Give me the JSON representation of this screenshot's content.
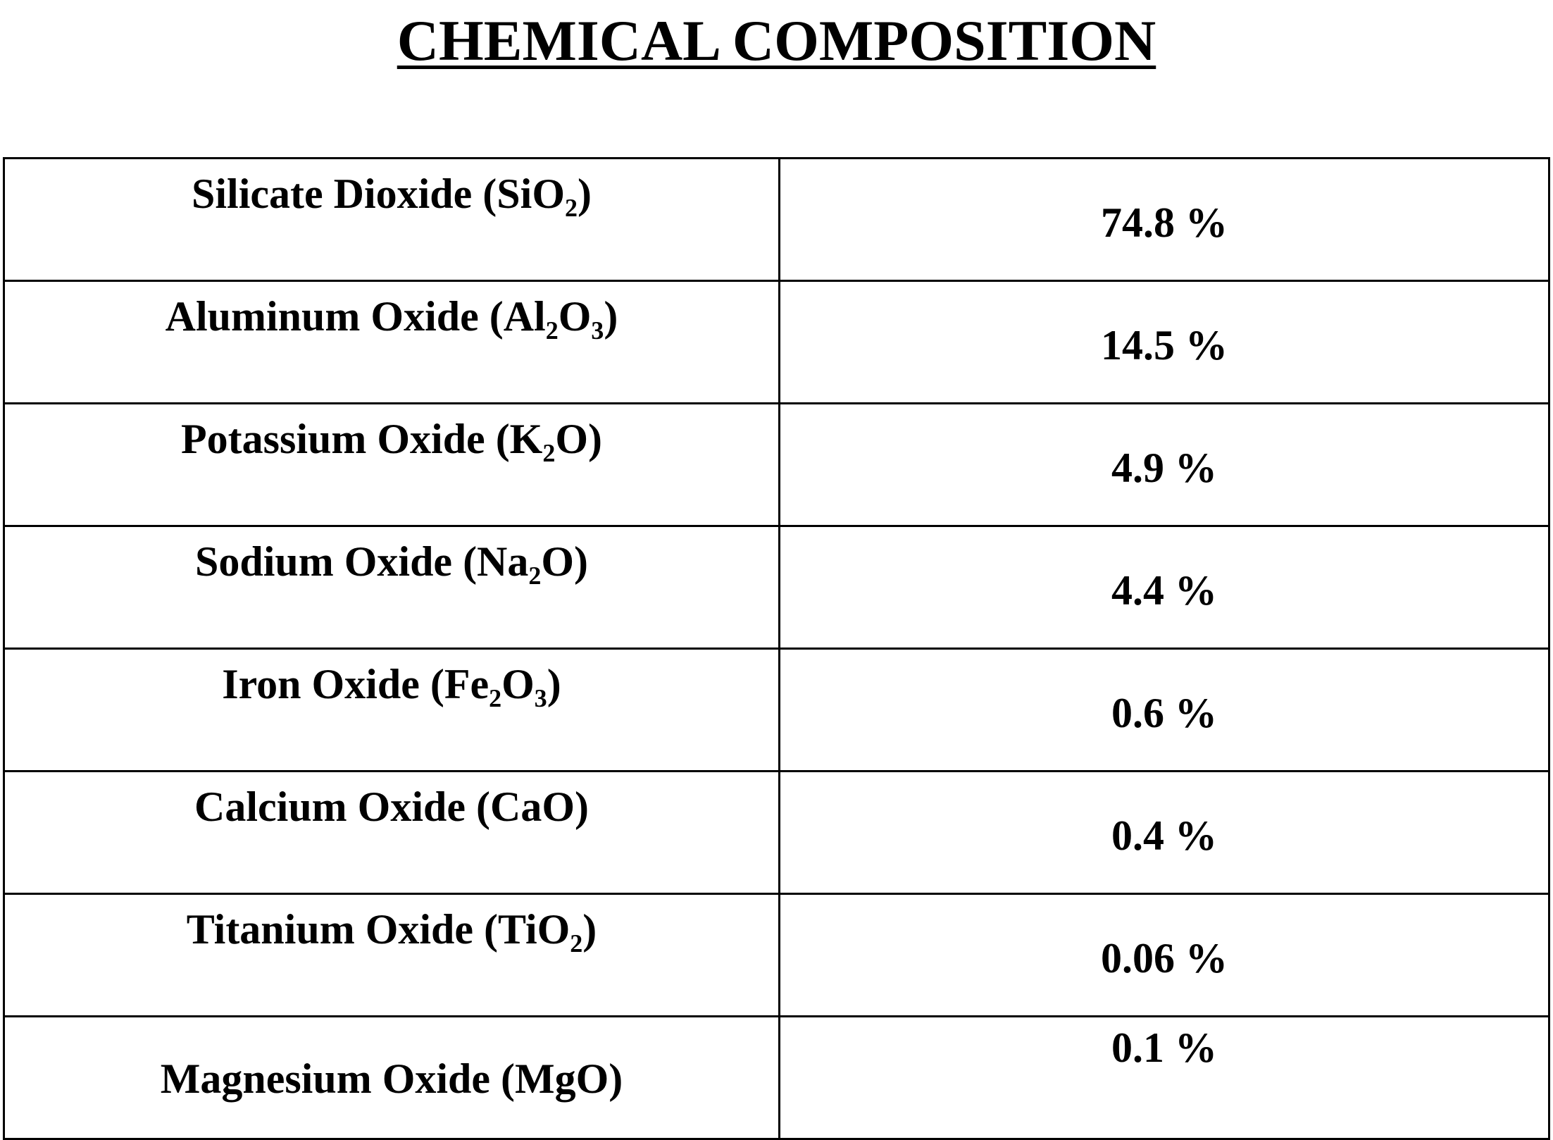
{
  "header": {
    "title": "CHEMICAL COMPOSITION"
  },
  "table": {
    "rows": [
      [
        "Silicate Dioxide (SiO₂)",
        "74.8 %"
      ],
      [
        "Aluminum Oxide (Al₂O₃)",
        "14.5 %"
      ],
      [
        "Potassium Oxide (K₂O)",
        "4.9 %"
      ],
      [
        "Sodium Oxide (Na₂O)",
        "4.4 %"
      ],
      [
        "Iron Oxide (Fe₂O₃)",
        "0.6 %"
      ],
      [
        "Calcium Oxide (CaO)",
        "0.4 %"
      ],
      [
        "Titanium Oxide (TiO₂)",
        "0.06 %"
      ],
      [
        "Magnesium Oxide (MgO)",
        "0.1 %"
      ]
    ]
  }
}
